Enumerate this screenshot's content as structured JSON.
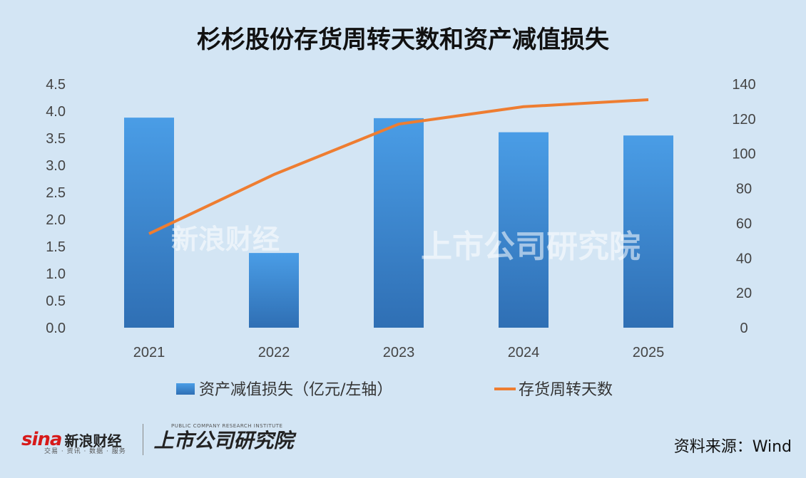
{
  "title": "杉杉股份存货周转天数和资产减值损失",
  "source": "资料来源：Wind",
  "branding": {
    "sina_mark": "sina",
    "sina_name": "新浪财经",
    "sina_tagline": "交易 · 资讯 · 数据 · 服务",
    "institute_name": "上市公司研究院",
    "institute_tagline": "PUBLIC COMPANY RESEARCH INSTITUTE"
  },
  "colors": {
    "background": "#d3e5f4",
    "bar_top": "#4a9de6",
    "bar_bottom": "#2f6fb4",
    "line": "#ee7d31"
  },
  "chart_data": {
    "type": "bar",
    "categories": [
      "2021",
      "2022",
      "2023",
      "2024",
      "2025"
    ],
    "series": [
      {
        "name": "资产减值损失（亿元/左轴）",
        "type": "bar",
        "axis": "left",
        "values": [
          3.88,
          1.38,
          3.87,
          3.61,
          3.55
        ]
      },
      {
        "name": "存货周转天数",
        "type": "line",
        "axis": "right",
        "values": [
          54,
          88,
          117,
          127,
          131
        ]
      }
    ],
    "y_left": {
      "lim": [
        0,
        4.5
      ],
      "ticks": [
        "0.0",
        "0.5",
        "1.0",
        "1.5",
        "2.0",
        "2.5",
        "3.0",
        "3.5",
        "4.0",
        "4.5"
      ]
    },
    "y_right": {
      "lim": [
        0,
        140
      ],
      "ticks": [
        "0",
        "20",
        "40",
        "60",
        "80",
        "100",
        "120",
        "140"
      ]
    },
    "grid": false,
    "legend": "bottom"
  }
}
